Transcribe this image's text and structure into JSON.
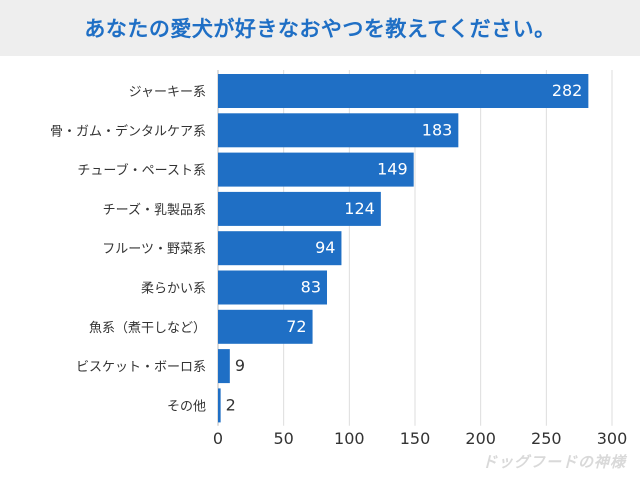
{
  "header": {
    "title": "あなたの愛犬が好きなおやつを教えてください。"
  },
  "watermark": {
    "text": "ドッグフードの神様"
  },
  "colors": {
    "bar": "#1f6fc5",
    "title": "#1f6fc5",
    "header_bg": "#eeeeee",
    "grid": "#dddddd"
  },
  "chart_data": {
    "type": "bar",
    "orientation": "horizontal",
    "title": "あなたの愛犬が好きなおやつを教えてください。",
    "categories": [
      "ジャーキー系",
      "骨・ガム・デンタルケア系",
      "チューブ・ペースト系",
      "チーズ・乳製品系",
      "フルーツ・野菜系",
      "柔らかい系",
      "魚系（煮干しなど）",
      "ビスケット・ボーロ系",
      "その他"
    ],
    "values": [
      282,
      183,
      149,
      124,
      94,
      83,
      72,
      9,
      2
    ],
    "xlim": [
      0,
      300
    ],
    "xticks": [
      0,
      50,
      100,
      150,
      200,
      250,
      300
    ],
    "xlabel": "",
    "ylabel": "",
    "grid": true,
    "legend": "none"
  }
}
